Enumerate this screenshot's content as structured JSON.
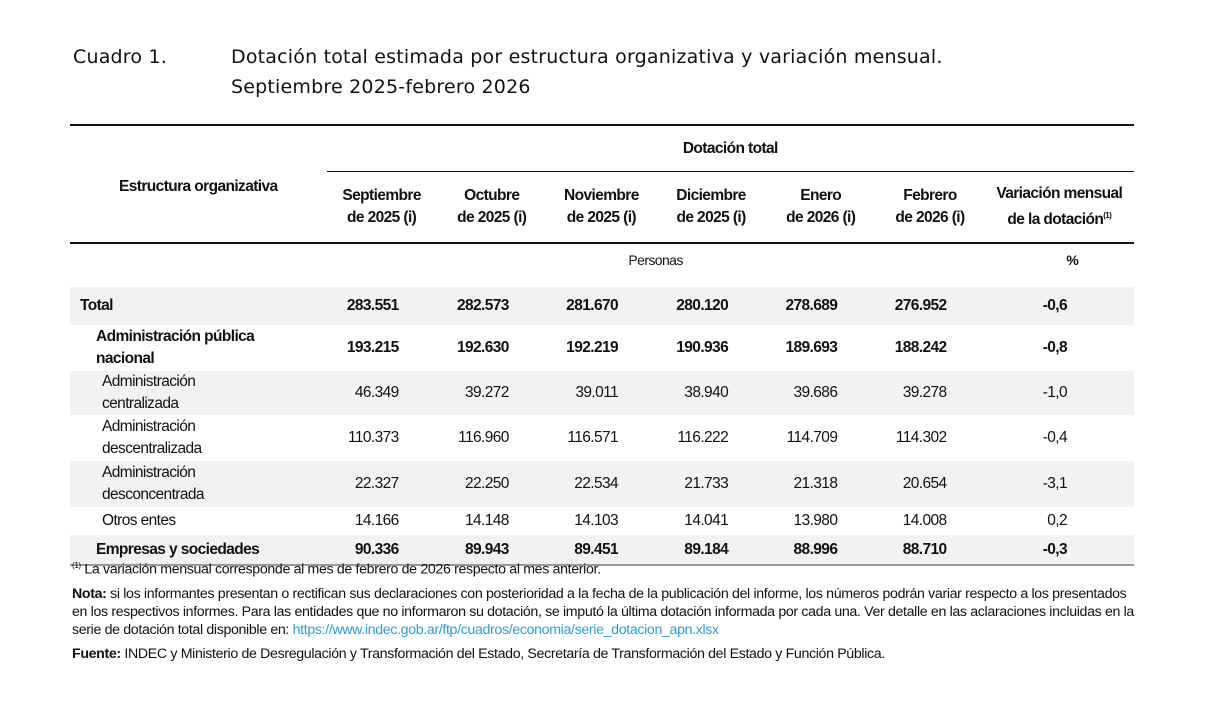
{
  "title": {
    "label": "Cuadro 1.",
    "line1": "Dotación total estimada por estructura organizativa y variación mensual.",
    "line2": "Septiembre 2025-febrero 2026"
  },
  "table": {
    "row_header": "Estructura organizativa",
    "group_header": "Dotación total",
    "columns": [
      {
        "l1": "Septiembre",
        "l2": "de 2025 (i)"
      },
      {
        "l1": "Octubre",
        "l2": "de 2025 (i)"
      },
      {
        "l1": "Noviembre",
        "l2": "de 2025 (i)"
      },
      {
        "l1": "Diciembre",
        "l2": "de 2025 (i)"
      },
      {
        "l1": "Enero",
        "l2": "de 2026 (i)"
      },
      {
        "l1": "Febrero",
        "l2": "de 2026 (i)"
      },
      {
        "l1": "Variación mensual",
        "l2": "de la dotación",
        "sup": "(1)"
      }
    ],
    "unit_persons": "Personas",
    "unit_pct": "%",
    "rows": [
      {
        "label": "Total",
        "values": [
          "283.551",
          "282.573",
          "281.670",
          "280.120",
          "278.689",
          "276.952",
          "-0,6"
        ]
      },
      {
        "label": "Administración pública nacional",
        "values": [
          "193.215",
          "192.630",
          "192.219",
          "190.936",
          "189.693",
          "188.242",
          "-0,8"
        ]
      },
      {
        "label": "Administración centralizada",
        "values": [
          "46.349",
          "39.272",
          "39.011",
          "38.940",
          "39.686",
          "39.278",
          "-1,0"
        ]
      },
      {
        "label": "Administración descentralizada",
        "values": [
          "110.373",
          "116.960",
          "116.571",
          "116.222",
          "114.709",
          "114.302",
          "-0,4"
        ]
      },
      {
        "label": "Administración desconcentrada",
        "values": [
          "22.327",
          "22.250",
          "22.534",
          "21.733",
          "21.318",
          "20.654",
          "-3,1"
        ]
      },
      {
        "label": "Otros entes",
        "values": [
          "14.166",
          "14.148",
          "14.103",
          "14.041",
          "13.980",
          "14.008",
          "0,2"
        ]
      },
      {
        "label": "Empresas y sociedades",
        "values": [
          "90.336",
          "89.943",
          "89.451",
          "89.184",
          "88.996",
          "88.710",
          "-0,3"
        ]
      }
    ]
  },
  "notes": {
    "footnote_sup": "(1)",
    "footnote": "La variación mensual corresponde al mes de febrero de 2026 respecto al mes anterior.",
    "nota_label": "Nota:",
    "nota_text": "si los informantes presentan o rectifican sus declaraciones con posterioridad a la fecha de la publicación del informe, los números podrán variar respecto a los presentados en los respectivos informes. Para las entidades que no informaron su dotación, se imputó la última dotación informada por cada una. Ver detalle en las aclaraciones incluidas en la serie de dotación total disponible en: ",
    "link": "https://www.indec.gob.ar/ftp/cuadros/economia/serie_dotacion_apn.xlsx",
    "fuente_label": "Fuente:",
    "fuente_text": "INDEC y Ministerio de Desregulación y Transformación del Estado, Secretaría de Transformación del Estado y Función Pública."
  },
  "colors": {
    "link": "#2a9fd6",
    "row_shade": "#f2f2f2"
  }
}
